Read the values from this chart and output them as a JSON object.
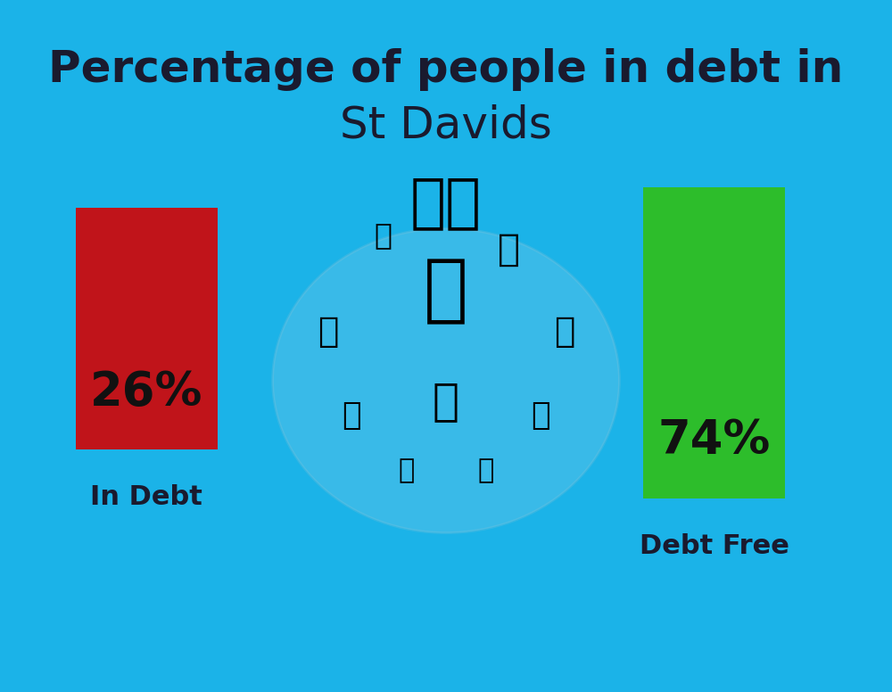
{
  "title_line1": "Percentage of people in debt in",
  "title_line2": "St Davids",
  "background_color": "#1BB3E8",
  "bar1_label": "In Debt",
  "bar1_value": 26,
  "bar1_pct": "26%",
  "bar1_color": "#C0141A",
  "bar2_label": "Debt Free",
  "bar2_value": 74,
  "bar2_pct": "74%",
  "bar2_color": "#2DBD2B",
  "title_fontsize": 36,
  "subtitle_fontsize": 36,
  "bar_pct_fontsize": 38,
  "bar_label_fontsize": 22,
  "text_color": "#1a1a2e",
  "bar_text_color": "#111111"
}
